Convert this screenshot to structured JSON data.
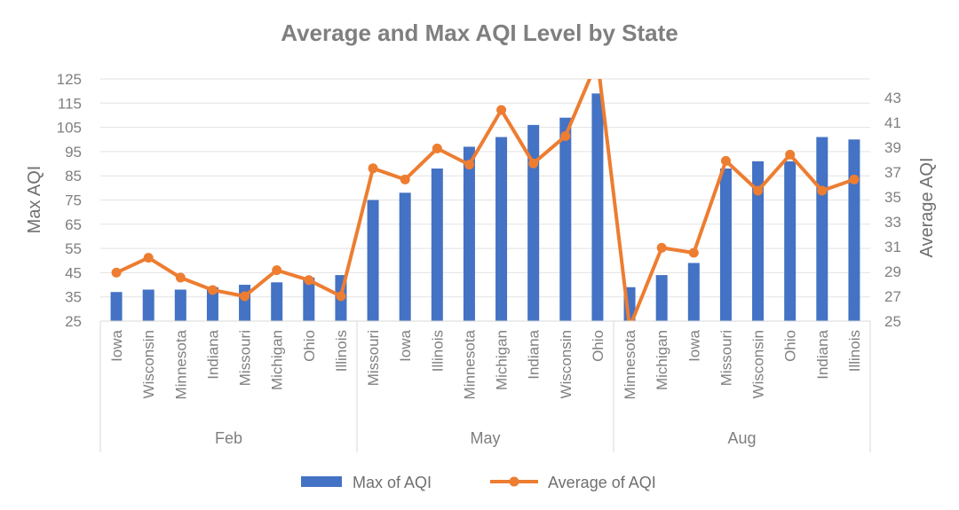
{
  "chart_data": {
    "type": "bar+line",
    "title": "Average and Max AQI Level by State",
    "groups": [
      {
        "label": "Feb",
        "categories": [
          "Iowa",
          "Wisconsin",
          "Minnesota",
          "Indiana",
          "Missouri",
          "Michigan",
          "Ohio",
          "Illinois"
        ]
      },
      {
        "label": "May",
        "categories": [
          "Missouri",
          "Iowa",
          "Illinois",
          "Minnesota",
          "Michigan",
          "Indiana",
          "Wisconsin",
          "Ohio"
        ]
      },
      {
        "label": "Aug",
        "categories": [
          "Minnesota",
          "Michigan",
          "Iowa",
          "Missouri",
          "Wisconsin",
          "Ohio",
          "Indiana",
          "Illinois"
        ]
      }
    ],
    "series": [
      {
        "name": "Max of AQI",
        "type": "bar",
        "axis": "left",
        "color": "#4472c4",
        "values": [
          37,
          38,
          38,
          39,
          40,
          41,
          43,
          44,
          75,
          78,
          88,
          97,
          101,
          106,
          109,
          119,
          39,
          44,
          49,
          88,
          91,
          91,
          101,
          100
        ]
      },
      {
        "name": "Average of AQI",
        "type": "line",
        "axis": "right",
        "color": "#ed7d31",
        "values": [
          28.9,
          30.1,
          28.5,
          27.5,
          27.0,
          29.1,
          28.3,
          27.0,
          37.3,
          36.4,
          38.9,
          37.6,
          42.0,
          37.7,
          39.9,
          46.0,
          24.5,
          30.9,
          30.5,
          37.9,
          35.5,
          38.4,
          35.5,
          36.4
        ]
      }
    ],
    "ylabel_left": "Max AQI",
    "ylabel_right": "Average AQI",
    "ylim_left": [
      25,
      125
    ],
    "yticks_left": [
      25,
      35,
      45,
      55,
      65,
      75,
      85,
      95,
      105,
      115,
      125
    ],
    "ylim_right": [
      25,
      44.5
    ],
    "yticks_right": [
      25,
      27,
      29,
      31,
      33,
      35,
      37,
      39,
      41,
      43
    ],
    "grid": true,
    "legend_position": "bottom"
  }
}
